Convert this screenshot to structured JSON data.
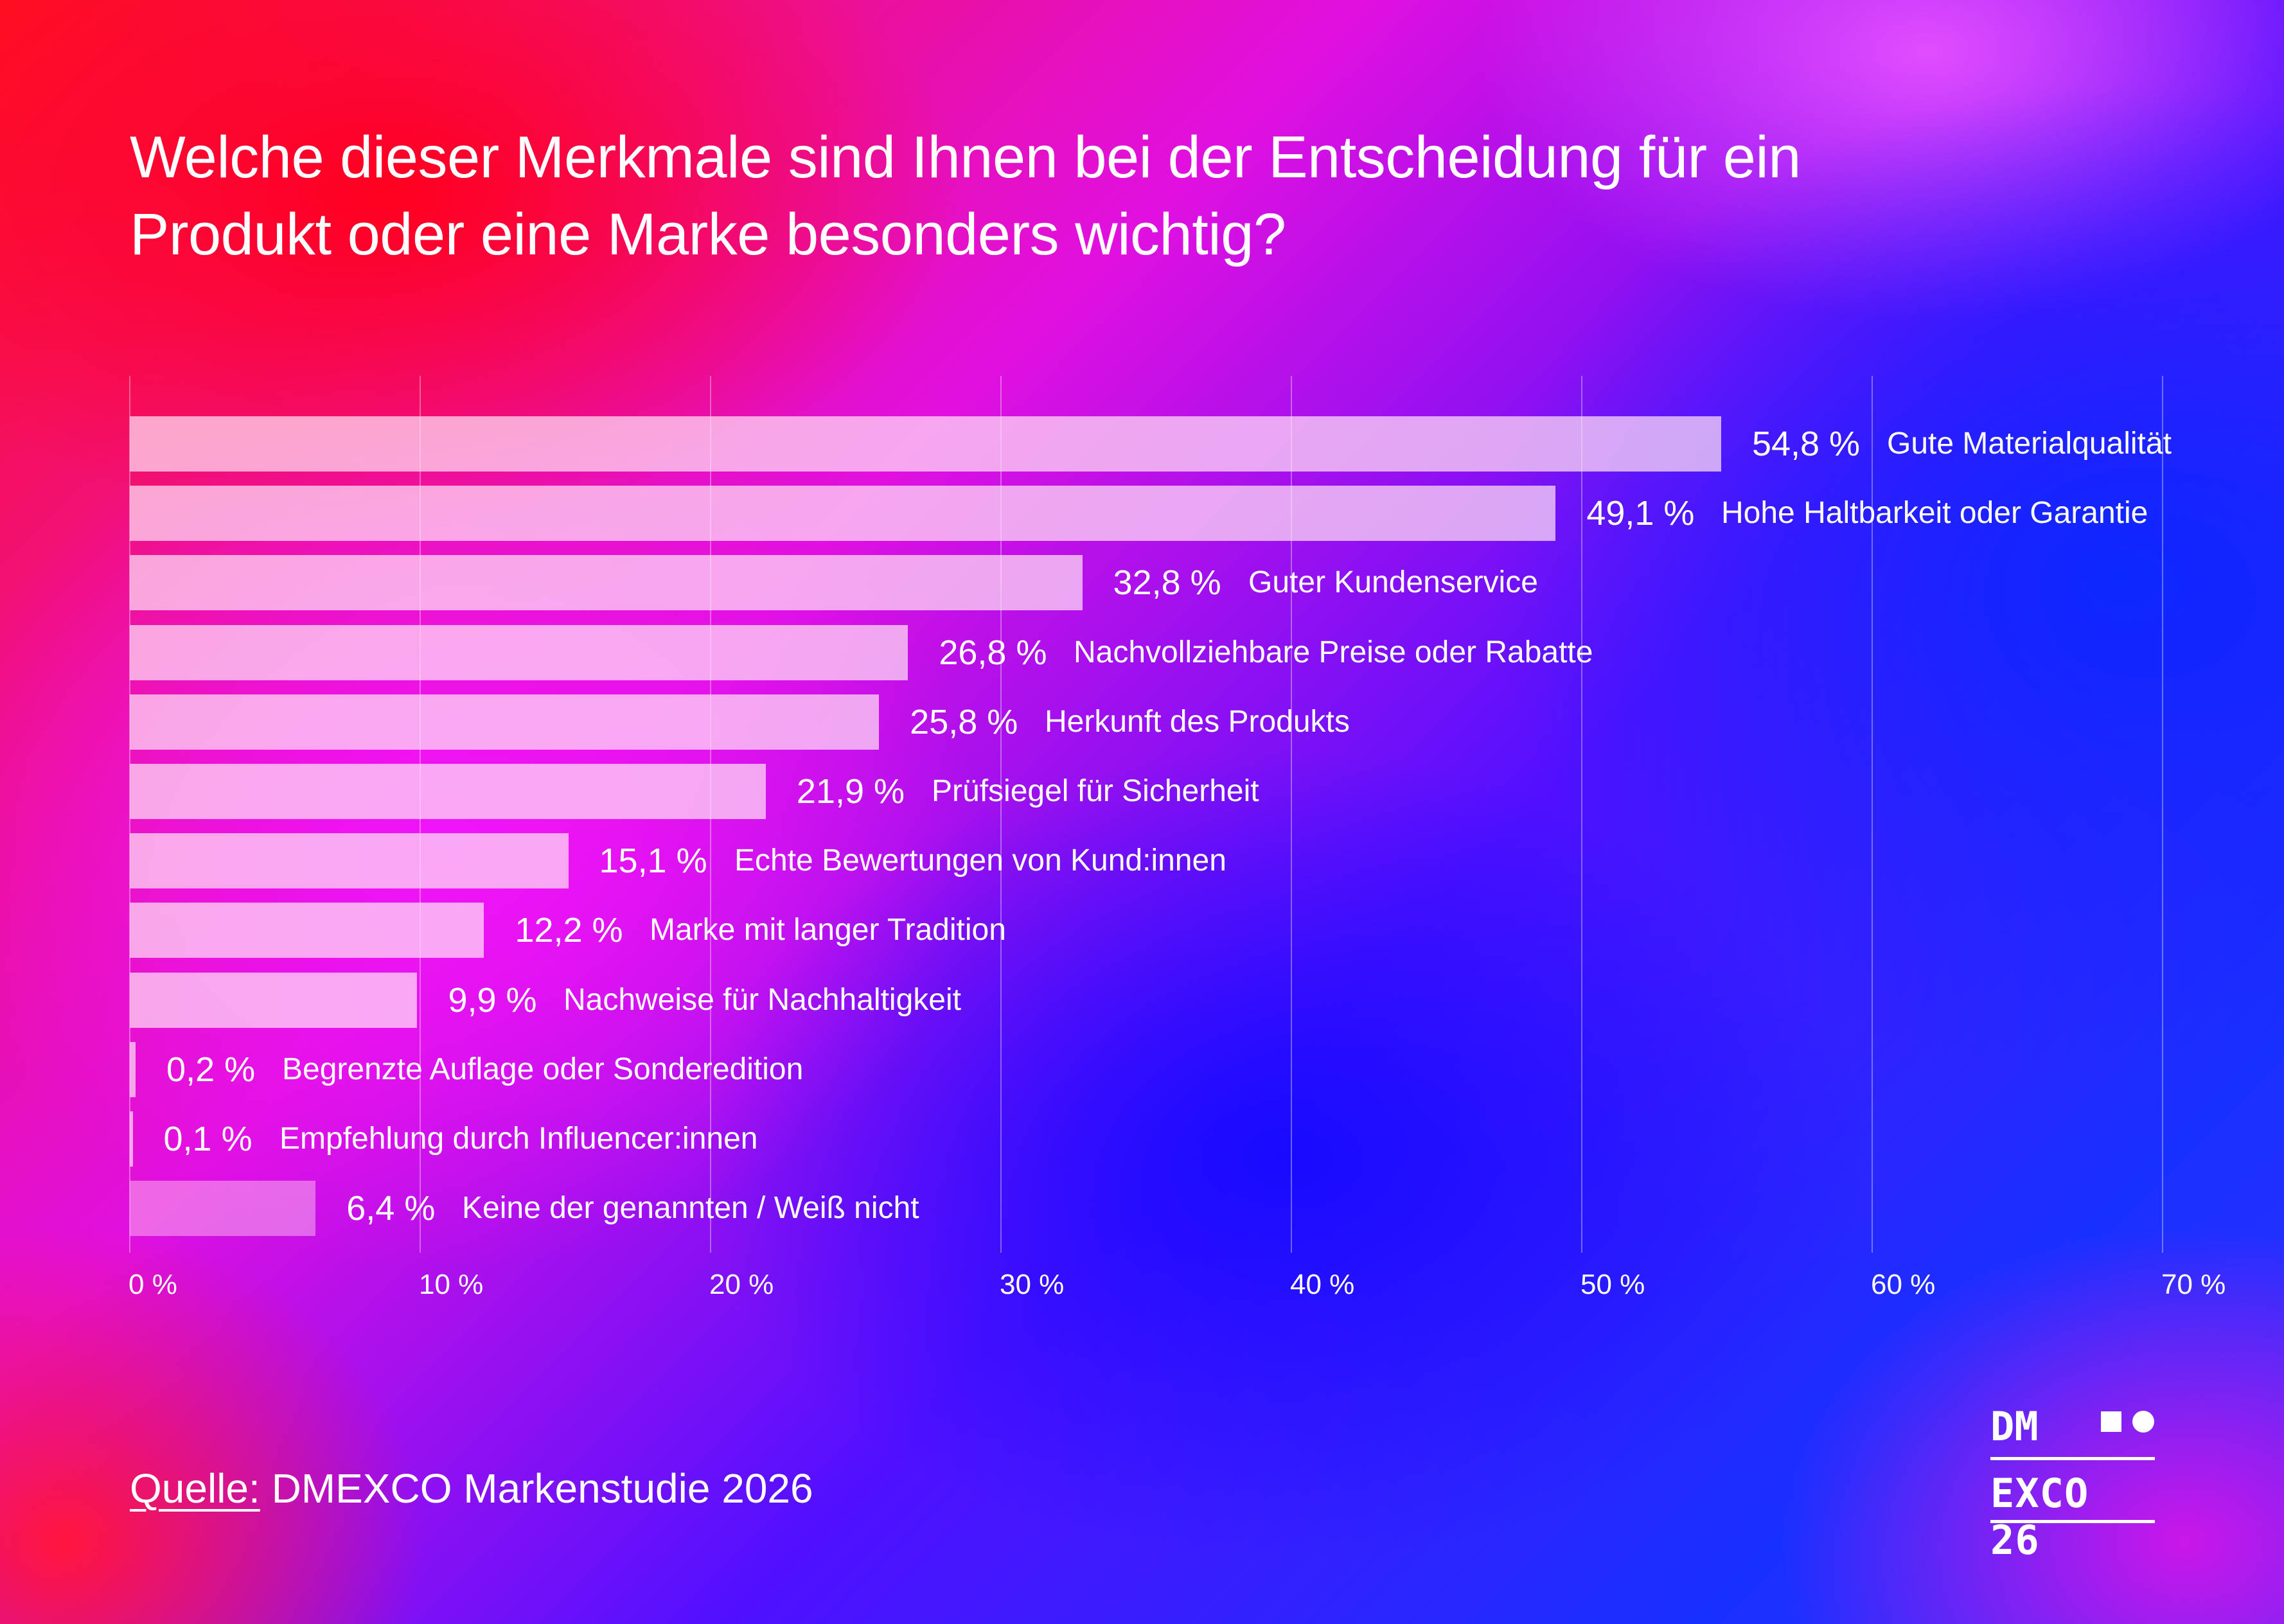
{
  "chart_data": {
    "type": "bar",
    "orientation": "horizontal",
    "title": "Welche dieser Merkmale sind Ihnen bei der Entscheidung für ein Produkt oder eine Marke besonders wichtig?",
    "title_lines": [
      "Welche dieser Merkmale sind Ihnen bei der Entscheidung für ein",
      "Produkt oder eine Marke besonders wichtig?"
    ],
    "categories": [
      "Gute Materialqualität",
      "Hohe Haltbarkeit oder Garantie",
      "Guter Kundenservice",
      "Nachvollziehbare Preise oder Rabatte",
      "Herkunft des Produkts",
      "Prüfsiegel für Sicherheit",
      "Echte Bewertungen von Kund:innen",
      "Marke mit langer Tradition",
      "Nachweise für Nachhaltigkeit",
      "Begrenzte Auflage oder Sonderedition",
      "Empfehlung durch Influencer:innen",
      "Keine der genannten / Weiß nicht"
    ],
    "values": [
      54.8,
      49.1,
      32.8,
      26.8,
      25.8,
      21.9,
      15.1,
      12.2,
      9.9,
      0.2,
      0.1,
      6.4
    ],
    "value_labels": [
      "54,8 %",
      "49,1 %",
      "32,8 %",
      "26,8 %",
      "25,8 %",
      "21,9 %",
      "15,1 %",
      "12,2 %",
      "9,9 %",
      "0,2 %",
      "0,1 %",
      "6,4 %"
    ],
    "xlim": [
      0,
      70
    ],
    "x_ticks": [
      0,
      10,
      20,
      30,
      40,
      50,
      60,
      70
    ],
    "x_tick_labels": [
      "0 %",
      "10 %",
      "20 %",
      "30 %",
      "40 %",
      "50 %",
      "60 %",
      "70 %"
    ],
    "xlabel": "",
    "ylabel": "",
    "grid": true,
    "bar_color": "#ffe1f5"
  },
  "source": {
    "prefix": "Quelle:",
    "text": "DMEXCO Markenstudie 2026"
  },
  "logo": {
    "line1": "DM",
    "line2": "EXCO 26"
  }
}
